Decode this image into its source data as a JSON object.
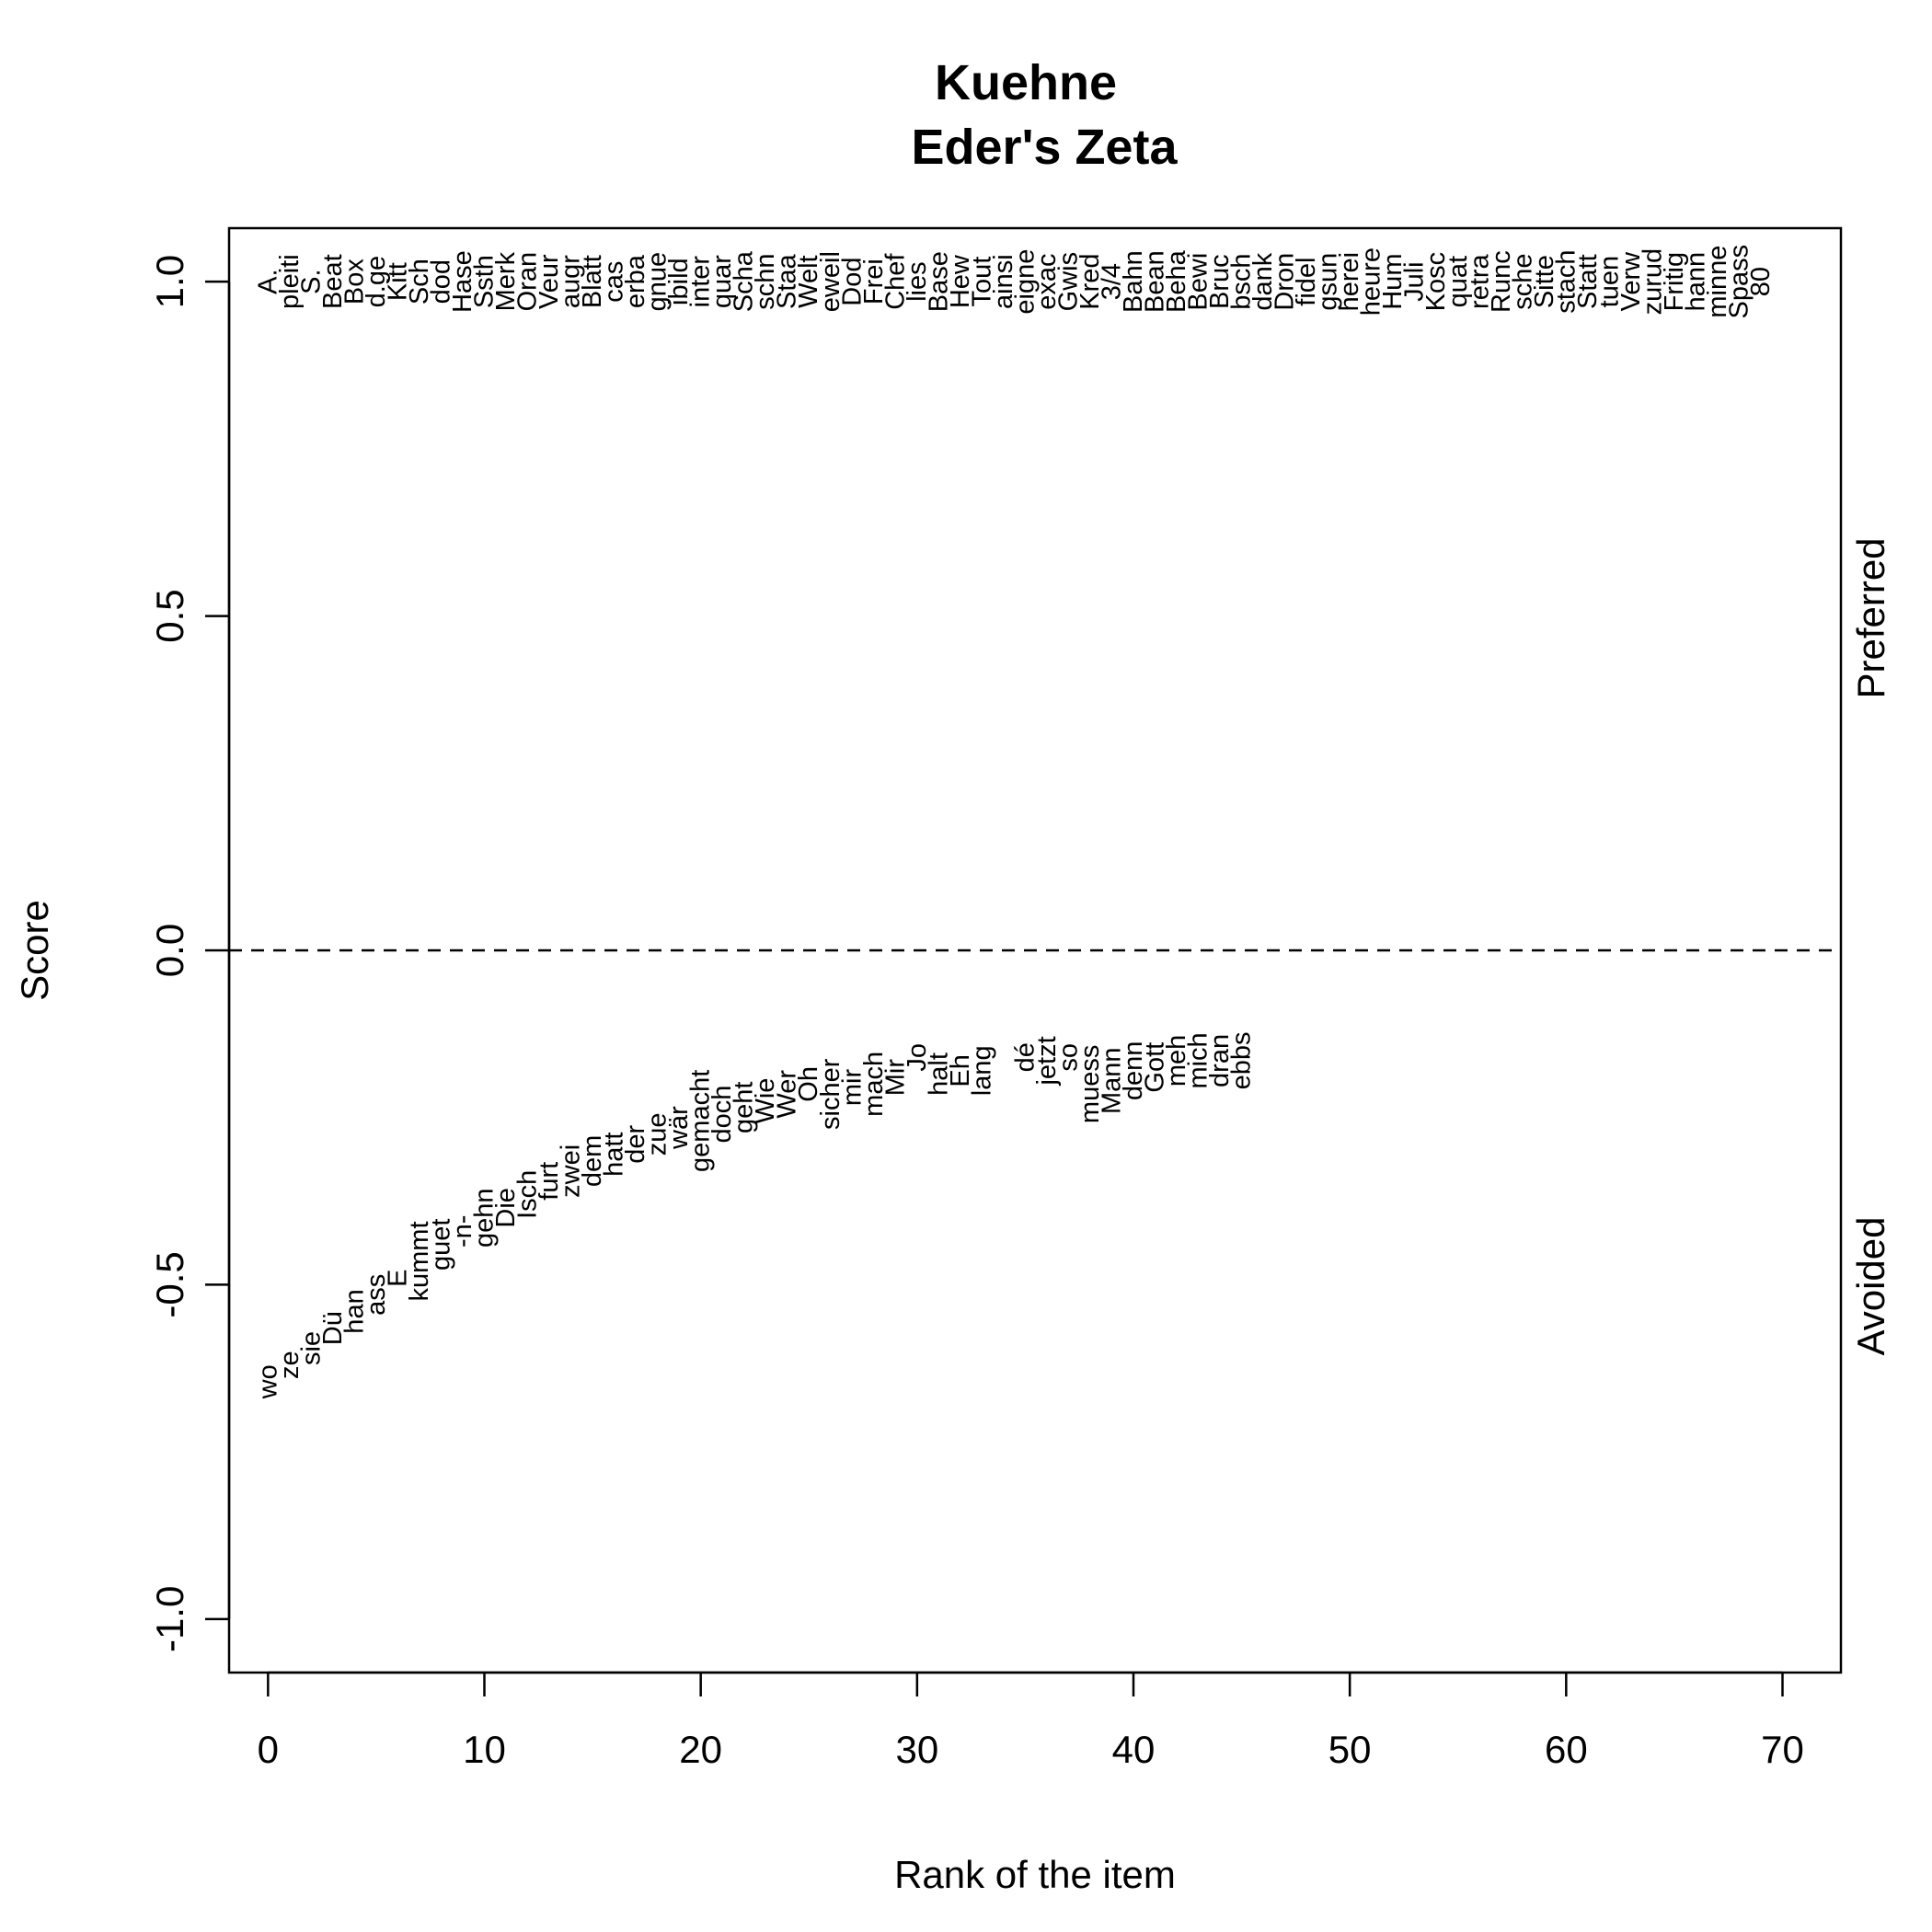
{
  "chart_data": {
    "type": "scatter",
    "title": "Kuehne",
    "subtitle": "Eder's Zeta",
    "xlabel": "Rank of the item",
    "ylabel": "Score",
    "xlim": [
      -1.8,
      72.7
    ],
    "ylim": [
      -1.08,
      1.08
    ],
    "x_ticks": [
      "0",
      "10",
      "20",
      "30",
      "40",
      "50",
      "60",
      "70"
    ],
    "x_tick_values": [
      0,
      10,
      20,
      30,
      40,
      50,
      60,
      70
    ],
    "y_ticks": [
      "-1.0",
      "-0.5",
      "0.0",
      "0.5",
      "1.0"
    ],
    "y_tick_values": [
      -1.0,
      -0.5,
      0.0,
      0.5,
      1.0
    ],
    "reference_line": {
      "y": 0,
      "style": "dashed"
    },
    "right_labels": {
      "preferred": "Preferred",
      "avoided": "Avoided"
    },
    "preferred": {
      "score": 1.0,
      "words": [
        "A.",
        "pleiti",
        "S.",
        "Beat",
        "Box",
        "d.ge",
        "Kitt",
        "Sch",
        "dod",
        "Hase",
        "Ssth",
        "Merk",
        "Oran",
        "Veur",
        "augr",
        "Blatt",
        "cas",
        "erba",
        "gnue",
        "ibild",
        "inter",
        "quar",
        "Scha",
        "schn",
        "Staa",
        "Welt",
        "eweil",
        "Dod",
        "Frei",
        "Chef",
        "lies",
        "Base",
        "Hew",
        "Tout",
        "ainsi",
        "eigne",
        "exac",
        "Gwis",
        "Kred",
        "3/4",
        "Bahn",
        "Bean",
        "Beha",
        "Bewi",
        "Bruc",
        "bsch",
        "dank",
        "Dron",
        "fidel",
        "gsun",
        "herei",
        "heure",
        "Hum",
        "Juli",
        "Kosc",
        "quat",
        "retra",
        "Runc",
        "sche",
        "Sitte",
        "stach",
        "Statt",
        "tuen",
        "Verw",
        "zurud",
        "Fritig",
        "hann",
        "minne",
        "Spass",
        "80"
      ]
    },
    "avoided": [
      {
        "word": "wo",
        "x": 0,
        "y": -0.645
      },
      {
        "word": "ze",
        "x": 1,
        "y": -0.62
      },
      {
        "word": "sie",
        "x": 2,
        "y": -0.595
      },
      {
        "word": "Dü",
        "x": 3,
        "y": -0.565
      },
      {
        "word": "han",
        "x": 4,
        "y": -0.54
      },
      {
        "word": "ass",
        "x": 5,
        "y": -0.515
      },
      {
        "word": "E",
        "x": 6,
        "y": -0.49
      },
      {
        "word": "kummt",
        "x": 7,
        "y": -0.465
      },
      {
        "word": "guet",
        "x": 8,
        "y": -0.44
      },
      {
        "word": "-n-",
        "x": 9,
        "y": -0.42
      },
      {
        "word": "gehn",
        "x": 10,
        "y": -0.4
      },
      {
        "word": "Die",
        "x": 11,
        "y": -0.385
      },
      {
        "word": "Isch",
        "x": 12,
        "y": -0.365
      },
      {
        "word": "furt",
        "x": 13,
        "y": -0.345
      },
      {
        "word": "zwei",
        "x": 14,
        "y": -0.33
      },
      {
        "word": "dem",
        "x": 15,
        "y": -0.315
      },
      {
        "word": "hatt",
        "x": 16,
        "y": -0.305
      },
      {
        "word": "der",
        "x": 17,
        "y": -0.29
      },
      {
        "word": "zue",
        "x": 18,
        "y": -0.275
      },
      {
        "word": "wär",
        "x": 19,
        "y": -0.265
      },
      {
        "word": "gemacht",
        "x": 20,
        "y": -0.255
      },
      {
        "word": "doch",
        "x": 21,
        "y": -0.245
      },
      {
        "word": "geht",
        "x": 22,
        "y": -0.235
      },
      {
        "word": "Wie",
        "x": 23,
        "y": -0.225
      },
      {
        "word": "Wer",
        "x": 24,
        "y": -0.215
      },
      {
        "word": "Oh",
        "x": 25,
        "y": -0.2
      },
      {
        "word": "sicher",
        "x": 26,
        "y": -0.215
      },
      {
        "word": "mir",
        "x": 27,
        "y": -0.205
      },
      {
        "word": "mach",
        "x": 28,
        "y": -0.2
      },
      {
        "word": "Mir",
        "x": 29,
        "y": -0.19
      },
      {
        "word": "Jo",
        "x": 30,
        "y": -0.16
      },
      {
        "word": "halt",
        "x": 31,
        "y": -0.185
      },
      {
        "word": "Eh",
        "x": 32,
        "y": -0.18
      },
      {
        "word": "lang",
        "x": 33,
        "y": -0.18
      },
      {
        "word": "dé",
        "x": 35,
        "y": -0.16
      },
      {
        "word": "jetzt",
        "x": 36,
        "y": -0.165
      },
      {
        "word": "so",
        "x": 37,
        "y": -0.16
      },
      {
        "word": "muess",
        "x": 38,
        "y": -0.2
      },
      {
        "word": "Mann",
        "x": 39,
        "y": -0.195
      },
      {
        "word": "denn",
        "x": 40,
        "y": -0.18
      },
      {
        "word": "Gott",
        "x": 41,
        "y": -0.175
      },
      {
        "word": "meh",
        "x": 42,
        "y": -0.165
      },
      {
        "word": "mich",
        "x": 43,
        "y": -0.165
      },
      {
        "word": "dran",
        "x": 44,
        "y": -0.165
      },
      {
        "word": "ebbs",
        "x": 45,
        "y": -0.165
      }
    ]
  }
}
